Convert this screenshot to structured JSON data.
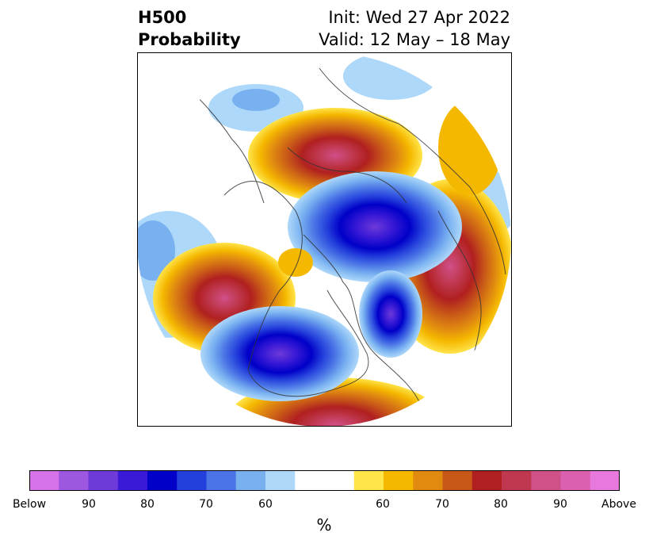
{
  "header": {
    "title_line1": "H500",
    "title_line2": "Probability",
    "init": "Init: Wed 27 Apr 2022",
    "valid": "Valid: 12 May – 18 May"
  },
  "colorbar": {
    "colors": [
      "#d673e8",
      "#9e57e0",
      "#6e3ad8",
      "#3a1ad6",
      "#0000c8",
      "#2440dc",
      "#4b75e6",
      "#78b0f0",
      "#aed8fa",
      "#ffffff",
      "#ffffff",
      "#ffe44a",
      "#f5b800",
      "#e08a10",
      "#c85818",
      "#b02020",
      "#c03850",
      "#d05088",
      "#dc60b0",
      "#e878dc"
    ],
    "tick_labels": [
      "Below",
      "90",
      "80",
      "70",
      "60",
      "60",
      "70",
      "80",
      "90",
      "Above"
    ],
    "unit": "%"
  }
}
